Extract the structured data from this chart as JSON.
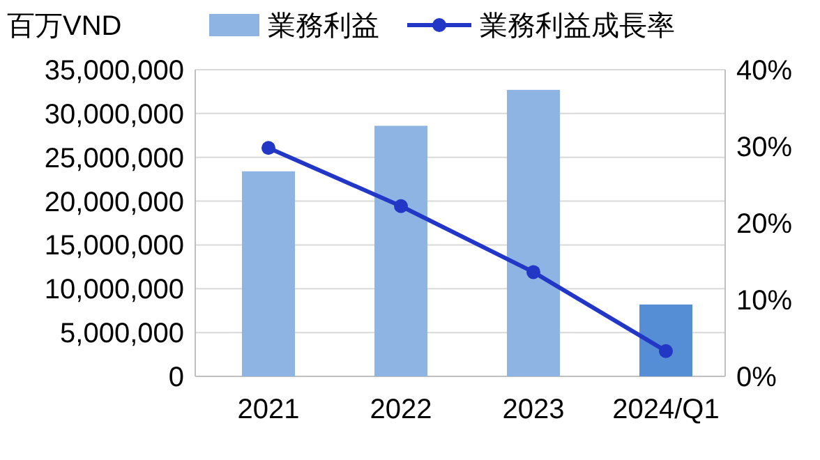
{
  "chart_data": {
    "type": "bar",
    "ylabel": "百万VND",
    "categories": [
      "2021",
      "2022",
      "2023",
      "2024/Q1"
    ],
    "series": [
      {
        "name": "業務利益",
        "colors": [
          "#8db4e2",
          "#8db4e2",
          "#8db4e2",
          "#558ed5"
        ],
        "values": [
          23400000,
          28600000,
          32700000,
          8200000
        ]
      },
      {
        "name": "業務利益成長率",
        "type": "line",
        "axis": "y2",
        "color": "#2337c6",
        "marker": "circle",
        "values": [
          29.8,
          22.2,
          13.6,
          3.3
        ]
      }
    ],
    "ylim": [
      0,
      35000000
    ],
    "yticks": [
      {
        "value": 0,
        "label": "0"
      },
      {
        "value": 5000000,
        "label": "5,000,000"
      },
      {
        "value": 10000000,
        "label": "10,000,000"
      },
      {
        "value": 15000000,
        "label": "15,000,000"
      },
      {
        "value": 20000000,
        "label": "20,000,000"
      },
      {
        "value": 25000000,
        "label": "25,000,000"
      },
      {
        "value": 30000000,
        "label": "30,000,000"
      },
      {
        "value": 35000000,
        "label": "35,000,000"
      }
    ],
    "y2lim": [
      0,
      40
    ],
    "y2ticks": [
      {
        "value": 0,
        "label": "0%"
      },
      {
        "value": 10,
        "label": "10%"
      },
      {
        "value": 20,
        "label": "20%"
      },
      {
        "value": 30,
        "label": "30%"
      },
      {
        "value": 40,
        "label": "40%"
      }
    ],
    "grid": "y",
    "legend": "top"
  }
}
